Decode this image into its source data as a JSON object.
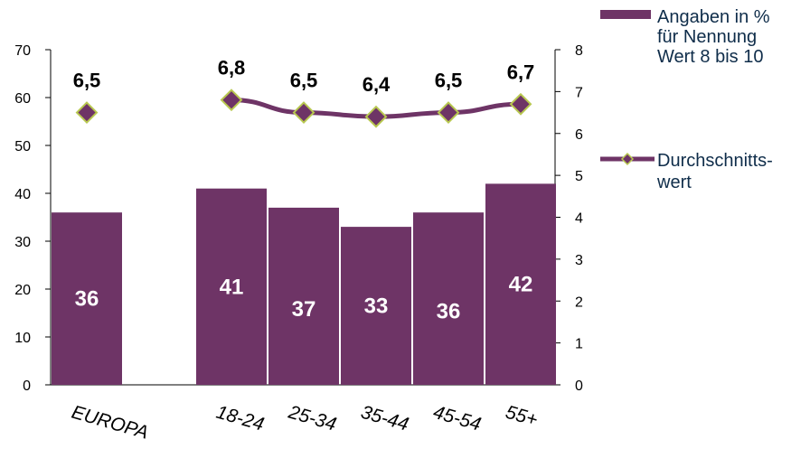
{
  "chart_data": {
    "type": "bar",
    "categories": [
      "EUROPA",
      "",
      "18-24",
      "25-34",
      "35-44",
      "45-54",
      "55+"
    ],
    "series": [
      {
        "name": "Angaben in % für Nennung Wert 8 bis 10",
        "type": "bar",
        "axis": "left",
        "values": [
          36,
          null,
          41,
          37,
          33,
          36,
          42
        ],
        "labels": [
          "36",
          "",
          "41",
          "37",
          "33",
          "36",
          "42"
        ]
      },
      {
        "name": "Durchschnitts-wert",
        "type": "line",
        "axis": "right",
        "values": [
          6.5,
          null,
          6.8,
          6.5,
          6.4,
          6.5,
          6.7
        ],
        "labels": [
          "6,5",
          "",
          "6,8",
          "6,5",
          "6,4",
          "6,5",
          "6,7"
        ]
      }
    ],
    "ylim_left": [
      0,
      70
    ],
    "yticks_left": [
      "0",
      "10",
      "20",
      "30",
      "40",
      "50",
      "60",
      "70"
    ],
    "ylim_right": [
      0,
      8
    ],
    "yticks_right": [
      "0",
      "1",
      "2",
      "3",
      "4",
      "5",
      "6",
      "7",
      "8"
    ],
    "legend": {
      "placement": "right",
      "bar_lines": [
        "Angaben in %",
        "für Nennung",
        "Wert 8 bis 10"
      ],
      "line_lines": [
        "Durchschnitts-",
        "wert"
      ]
    },
    "colors": {
      "bar": "#6e3466",
      "line": "#6e3466",
      "marker_fill": "#6e3466",
      "marker_stroke": "#b8c850",
      "legend_text": "#0f2d4a"
    },
    "grid": false
  }
}
